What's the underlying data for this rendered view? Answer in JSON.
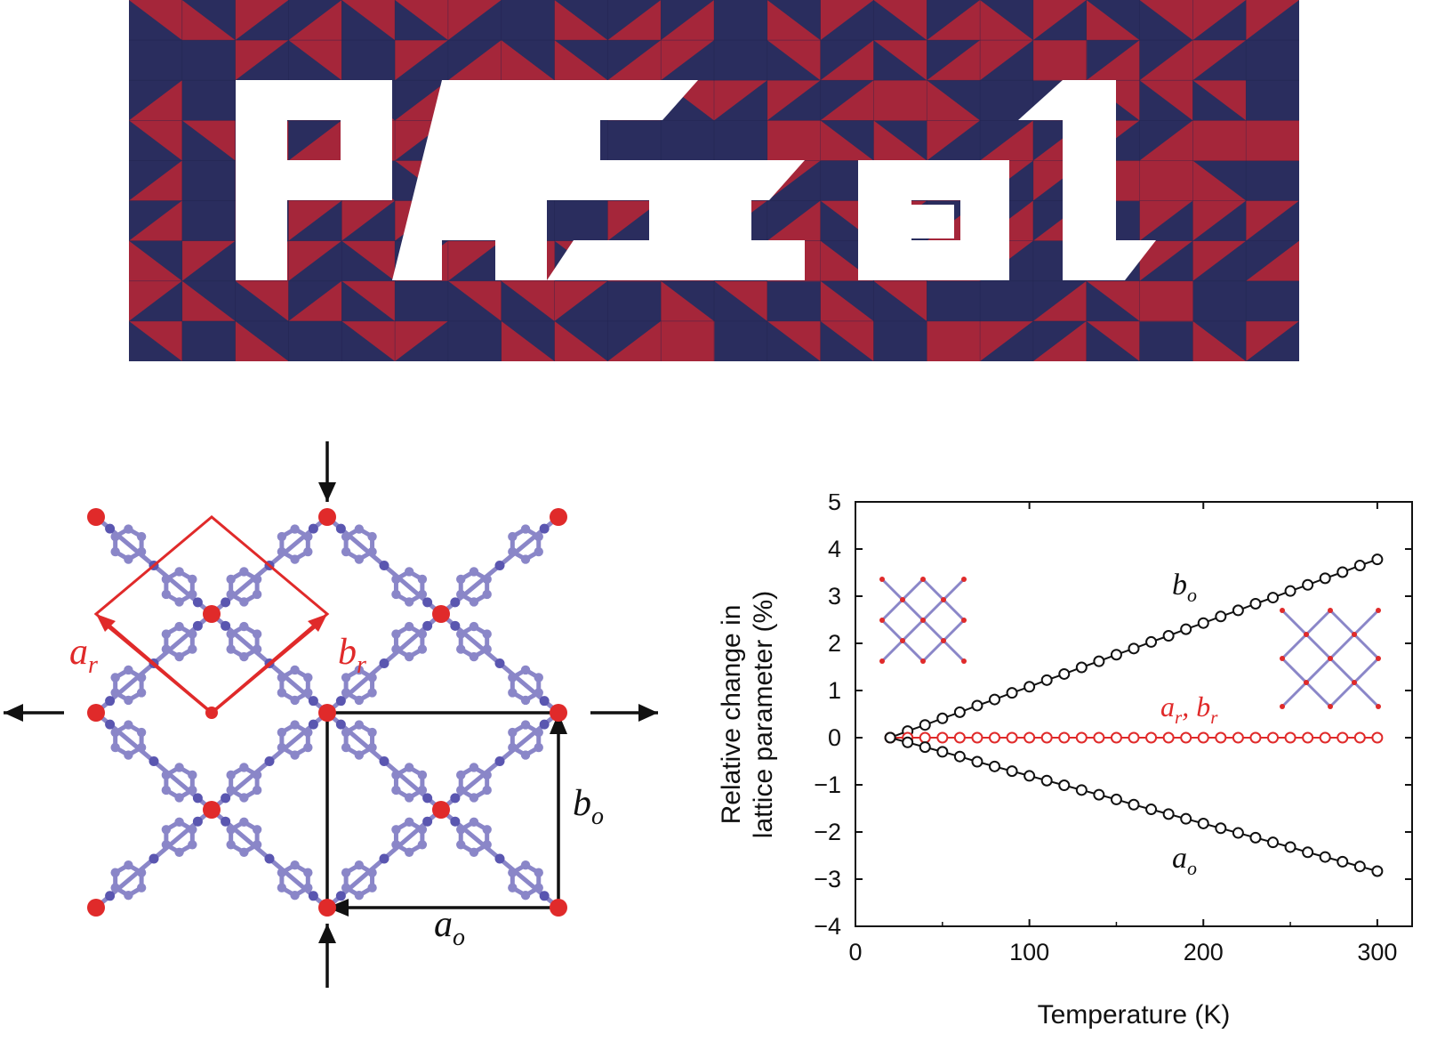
{
  "colors": {
    "navy": "#2a2d5e",
    "crimson": "#a5263a",
    "atom_red": "#e02a2a",
    "linker": "#8a86c8",
    "black": "#111111",
    "red_series": "#e02a2a"
  },
  "banner": {
    "text": "PASCal"
  },
  "structure": {
    "labels": {
      "ar_main": "a",
      "ar_sub": "r",
      "br_main": "b",
      "br_sub": "r",
      "ao_main": "a",
      "ao_sub": "o",
      "bo_main": "b",
      "bo_sub": "o"
    }
  },
  "chart_data": {
    "type": "line",
    "title": "",
    "xlabel": "Temperature (K)",
    "ylabel_line1": "Relative change in",
    "ylabel_line2": "lattice parameter (%)",
    "xlim": [
      0,
      320
    ],
    "ylim": [
      -4,
      5
    ],
    "xticks": [
      "0",
      "100",
      "200",
      "300"
    ],
    "yticks": [
      "5",
      "4",
      "3",
      "2",
      "1",
      "0",
      "−1",
      "−2",
      "−3",
      "−4"
    ],
    "x": [
      20,
      30,
      40,
      50,
      60,
      70,
      80,
      90,
      100,
      110,
      120,
      130,
      140,
      150,
      160,
      170,
      180,
      190,
      200,
      210,
      220,
      230,
      240,
      250,
      260,
      270,
      280,
      290,
      300
    ],
    "series": [
      {
        "name": "b_o",
        "label_main": "b",
        "label_sub": "o",
        "color": "#111111",
        "values": [
          0.0,
          0.14,
          0.27,
          0.41,
          0.54,
          0.68,
          0.81,
          0.95,
          1.08,
          1.22,
          1.35,
          1.49,
          1.62,
          1.76,
          1.89,
          2.03,
          2.16,
          2.3,
          2.43,
          2.57,
          2.7,
          2.84,
          2.97,
          3.11,
          3.24,
          3.38,
          3.51,
          3.65,
          3.78
        ]
      },
      {
        "name": "a_r, b_r",
        "label_main_1": "a",
        "label_sub_1": "r",
        "label_main_2": "b",
        "label_sub_2": "r",
        "color": "#e02a2a",
        "values": [
          0,
          0,
          0,
          0,
          0,
          0,
          0,
          0,
          0,
          0,
          0,
          0,
          0,
          0,
          0,
          0,
          0,
          0,
          0,
          0,
          0,
          0,
          0,
          0,
          0,
          0,
          0,
          0,
          0
        ]
      },
      {
        "name": "a_o",
        "label_main": "a",
        "label_sub": "o",
        "color": "#111111",
        "values": [
          0.0,
          -0.1,
          -0.2,
          -0.3,
          -0.4,
          -0.51,
          -0.61,
          -0.71,
          -0.81,
          -0.91,
          -1.01,
          -1.11,
          -1.21,
          -1.31,
          -1.42,
          -1.52,
          -1.62,
          -1.72,
          -1.82,
          -1.92,
          -2.02,
          -2.12,
          -2.22,
          -2.32,
          -2.43,
          -2.53,
          -2.63,
          -2.73,
          -2.83
        ]
      }
    ],
    "grid": false,
    "legend": "none"
  }
}
